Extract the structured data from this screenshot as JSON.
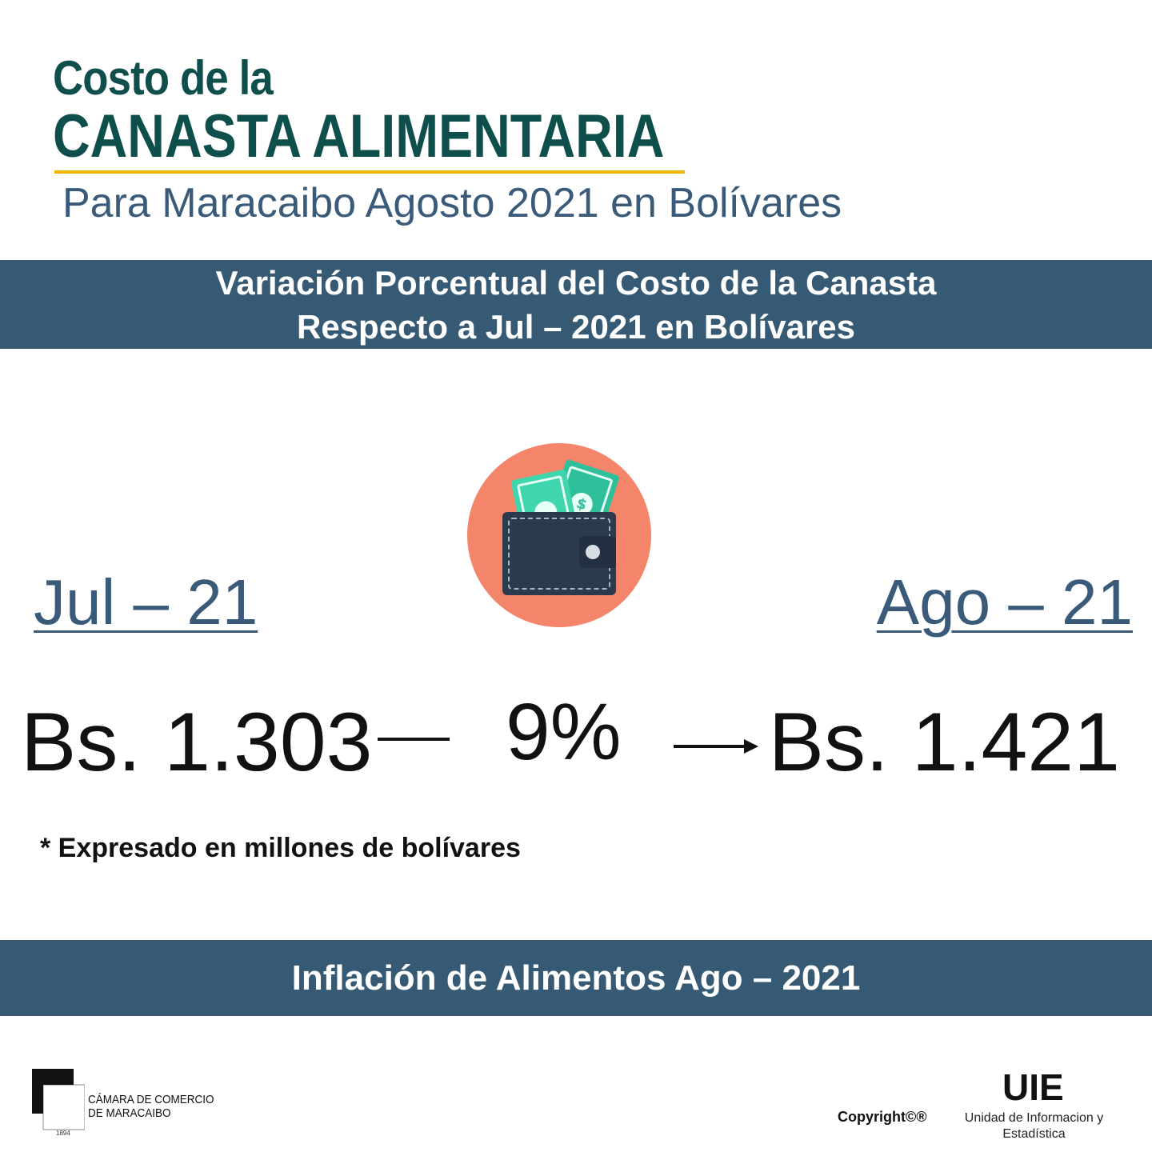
{
  "header": {
    "title_line1": "Costo de la",
    "title_line2": "CANASTA ALIMENTARIA",
    "subtitle": "Para Maracaibo Agosto 2021 en Bolívares"
  },
  "banner_top": {
    "line1": "Variación Porcentual del Costo de la Canasta",
    "line2": "Respecto a Jul – 2021 en Bolívares"
  },
  "comparison": {
    "left_month": "Jul – 21",
    "right_month": "Ago – 21",
    "left_value": "Bs. 1.303",
    "right_value": "Bs. 1.421",
    "percent": "9%"
  },
  "footnote": "* Expresado en millones de bolívares",
  "banner_bottom": "Inflación de Alimentos Ago – 2021",
  "footer": {
    "chamber_line1": "CÁMARA DE COMERCIO",
    "chamber_line2": "DE MARACAIBO",
    "chamber_year": "1894",
    "copyright": "Copyright©®",
    "uie_title": "UIE",
    "uie_subtitle": "Unidad de Informacion y Estadística"
  },
  "colors": {
    "title_green": "#0f4f4b",
    "accent_yellow": "#f4b400",
    "banner_blue": "#365a73",
    "icon_circle": "#f4856a"
  },
  "icons": {
    "wallet": "wallet-money-icon",
    "arrow": "arrow-right-icon",
    "logo": "camara-comercio-logo"
  }
}
